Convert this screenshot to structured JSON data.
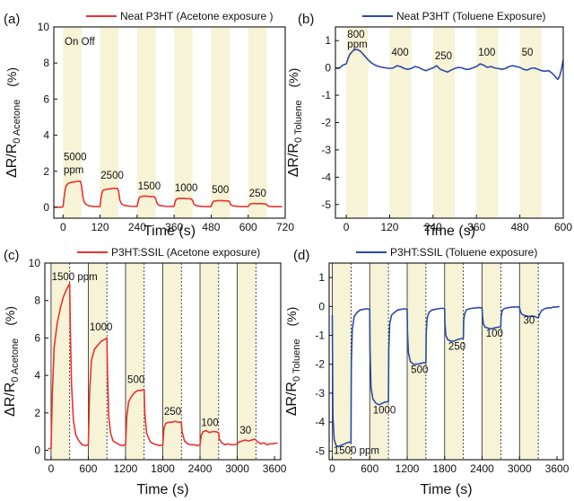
{
  "chart_data": [
    {
      "panel": "(a)",
      "type": "line",
      "legend": "Neat P3HT (Acetone exposure )",
      "color": "#e8332e",
      "xlabel": "Time (s)",
      "ylabel_main": "ΔR/R",
      "ylabel_sub": "0 Acetone",
      "ylabel_unit": "(%)",
      "xlim": [
        -30,
        720
      ],
      "ylim": [
        -0.6,
        10
      ],
      "xticks": [
        0,
        120,
        240,
        360,
        480,
        600,
        720
      ],
      "yticks": [
        0,
        2,
        4,
        6,
        8,
        10
      ],
      "exposure_windows": [
        [
          0,
          60
        ],
        [
          120,
          180
        ],
        [
          240,
          300
        ],
        [
          360,
          420
        ],
        [
          480,
          540
        ],
        [
          600,
          660
        ]
      ],
      "annotations": [
        {
          "text": "On Off",
          "x": 5,
          "y": 9.0
        },
        {
          "text": "5000",
          "x": 2,
          "y": 2.6
        },
        {
          "text": "ppm",
          "x": 2,
          "y": 1.9
        },
        {
          "text": "2500",
          "x": 122,
          "y": 1.6
        },
        {
          "text": "1500",
          "x": 242,
          "y": 1.0
        },
        {
          "text": "1000",
          "x": 362,
          "y": 0.9
        },
        {
          "text": "500",
          "x": 482,
          "y": 0.8
        },
        {
          "text": "250",
          "x": 603,
          "y": 0.6
        }
      ],
      "x": [
        -30,
        -5,
        0,
        3,
        6,
        10,
        15,
        20,
        30,
        40,
        50,
        56,
        60,
        64,
        68,
        75,
        85,
        100,
        118,
        120,
        123,
        126,
        130,
        140,
        150,
        160,
        170,
        176,
        180,
        184,
        190,
        200,
        220,
        238,
        240,
        243,
        246,
        250,
        260,
        270,
        280,
        290,
        296,
        300,
        304,
        310,
        330,
        358,
        360,
        363,
        366,
        370,
        380,
        390,
        400,
        410,
        416,
        420,
        424,
        430,
        450,
        478,
        480,
        483,
        486,
        490,
        500,
        510,
        520,
        530,
        536,
        540,
        544,
        550,
        570,
        598,
        600,
        603,
        606,
        610,
        620,
        630,
        640,
        650,
        656,
        660,
        664,
        670,
        690,
        710
      ],
      "y": [
        0.02,
        0.0,
        0.05,
        0.5,
        0.9,
        1.2,
        1.3,
        1.35,
        1.4,
        1.42,
        1.45,
        1.45,
        1.2,
        0.6,
        0.3,
        0.15,
        0.08,
        0.05,
        0.04,
        0.06,
        0.5,
        0.8,
        0.95,
        1.0,
        1.02,
        1.05,
        1.05,
        1.05,
        0.9,
        0.4,
        0.18,
        0.1,
        0.06,
        0.05,
        0.06,
        0.3,
        0.5,
        0.58,
        0.62,
        0.62,
        0.6,
        0.6,
        0.58,
        0.5,
        0.25,
        0.12,
        0.06,
        0.05,
        0.06,
        0.3,
        0.42,
        0.48,
        0.5,
        0.5,
        0.48,
        0.48,
        0.46,
        0.38,
        0.18,
        0.1,
        0.05,
        0.04,
        0.05,
        0.2,
        0.3,
        0.35,
        0.37,
        0.38,
        0.36,
        0.36,
        0.35,
        0.3,
        0.14,
        0.08,
        0.05,
        0.04,
        0.05,
        0.12,
        0.18,
        0.2,
        0.22,
        0.2,
        0.21,
        0.2,
        0.19,
        0.16,
        0.08,
        0.05,
        0.04,
        0.04
      ]
    },
    {
      "panel": "(b)",
      "type": "line",
      "legend": "Neat P3HT (Toluene Exposure)",
      "color": "#2b4aa6",
      "xlabel": "Time (s)",
      "ylabel_main": "ΔR/R",
      "ylabel_sub": "0 Toluene",
      "ylabel_unit": "(%)",
      "xlim": [
        -30,
        600
      ],
      "ylim": [
        -5.5,
        1.5
      ],
      "xticks": [
        0,
        120,
        240,
        360,
        480,
        600
      ],
      "yticks": [
        1,
        0,
        -1,
        -2,
        -3,
        -4,
        -5
      ],
      "exposure_windows": [
        [
          0,
          60
        ],
        [
          120,
          180
        ],
        [
          240,
          300
        ],
        [
          360,
          420
        ],
        [
          480,
          540
        ]
      ],
      "annotations": [
        {
          "text": "800",
          "x": 3,
          "y": 1.1
        },
        {
          "text": "ppm",
          "x": 3,
          "y": 0.75
        },
        {
          "text": "400",
          "x": 125,
          "y": 0.45
        },
        {
          "text": "250",
          "x": 245,
          "y": 0.32
        },
        {
          "text": "100",
          "x": 365,
          "y": 0.45
        },
        {
          "text": "50",
          "x": 485,
          "y": 0.45
        }
      ],
      "x": [
        -30,
        -20,
        -10,
        0,
        5,
        10,
        20,
        30,
        40,
        50,
        60,
        70,
        80,
        90,
        100,
        110,
        120,
        130,
        140,
        150,
        160,
        170,
        180,
        190,
        200,
        210,
        220,
        230,
        240,
        250,
        260,
        270,
        280,
        290,
        300,
        310,
        320,
        330,
        340,
        350,
        360,
        370,
        380,
        390,
        400,
        410,
        420,
        430,
        440,
        450,
        460,
        470,
        480,
        490,
        500,
        510,
        520,
        530,
        540,
        550,
        560,
        570,
        580,
        585,
        590,
        595,
        600
      ],
      "y": [
        0.0,
        -0.02,
        0.1,
        0.15,
        0.35,
        0.5,
        0.65,
        0.68,
        0.6,
        0.45,
        0.3,
        0.18,
        0.1,
        0.05,
        0.02,
        0.0,
        -0.02,
        0.0,
        0.08,
        0.05,
        -0.02,
        -0.05,
        -0.02,
        0.05,
        0.02,
        -0.05,
        -0.1,
        -0.05,
        0.0,
        0.08,
        -0.05,
        -0.1,
        -0.15,
        -0.08,
        -0.02,
        0.02,
        0.0,
        -0.05,
        -0.05,
        0.0,
        0.05,
        0.15,
        0.1,
        0.02,
        0.05,
        0.0,
        -0.02,
        -0.05,
        -0.02,
        0.05,
        0.08,
        0.05,
        0.02,
        -0.05,
        -0.08,
        -0.02,
        0.0,
        -0.05,
        -0.1,
        -0.12,
        -0.1,
        -0.2,
        -0.35,
        -0.42,
        -0.3,
        -0.05,
        0.3
      ]
    },
    {
      "panel": "(c)",
      "type": "line",
      "legend": "P3HT:SSIL (Acetone exposure)",
      "color": "#e8332e",
      "xlabel": "Time (s)",
      "ylabel_main": "ΔR/R",
      "ylabel_sub": "0 Acetone",
      "ylabel_unit": "(%)",
      "xlim": [
        -100,
        3700
      ],
      "ylim": [
        -0.5,
        10
      ],
      "xticks": [
        0,
        600,
        1200,
        1800,
        2400,
        3000,
        3600
      ],
      "yticks": [
        0,
        2,
        4,
        6,
        8,
        10
      ],
      "exposure_windows": [
        [
          0,
          300
        ],
        [
          600,
          900
        ],
        [
          1200,
          1500
        ],
        [
          1800,
          2100
        ],
        [
          2400,
          2700
        ],
        [
          3000,
          3300
        ]
      ],
      "annotations": [
        {
          "text": "1500 ppm",
          "x": 10,
          "y": 9.1
        },
        {
          "text": "1000",
          "x": 620,
          "y": 6.4
        },
        {
          "text": "500",
          "x": 1230,
          "y": 3.6
        },
        {
          "text": "250",
          "x": 1820,
          "y": 1.9
        },
        {
          "text": "100",
          "x": 2420,
          "y": 1.3
        },
        {
          "text": "30",
          "x": 3040,
          "y": 0.9
        }
      ],
      "x": [
        -50,
        0,
        20,
        50,
        100,
        150,
        200,
        250,
        300,
        310,
        330,
        360,
        400,
        450,
        500,
        560,
        600,
        620,
        650,
        700,
        750,
        800,
        850,
        900,
        910,
        930,
        960,
        1000,
        1050,
        1100,
        1150,
        1200,
        1220,
        1250,
        1300,
        1350,
        1400,
        1450,
        1500,
        1510,
        1540,
        1600,
        1650,
        1700,
        1760,
        1800,
        1820,
        1850,
        1900,
        1950,
        2000,
        2050,
        2100,
        2110,
        2150,
        2200,
        2250,
        2300,
        2360,
        2400,
        2420,
        2450,
        2500,
        2550,
        2600,
        2650,
        2700,
        2710,
        2750,
        2800,
        2850,
        2900,
        2960,
        3000,
        3030,
        3080,
        3130,
        3180,
        3230,
        3280,
        3300,
        3330,
        3380,
        3430,
        3480,
        3530,
        3580,
        3650
      ],
      "y": [
        0.1,
        0.1,
        3.0,
        5.5,
        6.8,
        7.6,
        8.2,
        8.6,
        8.9,
        6.5,
        3.5,
        1.6,
        0.8,
        0.5,
        0.3,
        0.25,
        0.3,
        3.0,
        4.8,
        5.4,
        5.6,
        5.8,
        5.9,
        6.0,
        4.0,
        1.8,
        0.9,
        0.5,
        0.4,
        0.3,
        0.25,
        0.3,
        1.8,
        2.6,
        2.9,
        3.1,
        3.2,
        3.2,
        3.25,
        2.0,
        0.9,
        0.45,
        0.35,
        0.3,
        0.25,
        0.3,
        1.2,
        1.45,
        1.5,
        1.5,
        1.55,
        1.5,
        1.5,
        1.0,
        0.5,
        0.35,
        0.3,
        0.3,
        0.25,
        0.3,
        0.8,
        1.0,
        1.05,
        0.95,
        1.0,
        1.0,
        0.95,
        0.6,
        0.4,
        0.3,
        0.35,
        0.3,
        0.3,
        0.35,
        0.45,
        0.5,
        0.55,
        0.5,
        0.55,
        0.6,
        0.55,
        0.45,
        0.35,
        0.4,
        0.3,
        0.35,
        0.35,
        0.4
      ]
    },
    {
      "panel": "(d)",
      "type": "line",
      "legend": "P3HT:SSIL (Toluene exposure)",
      "color": "#2b4aa6",
      "xlabel": "Time (s)",
      "ylabel_main": "ΔR/R",
      "ylabel_sub": "0 Toluene",
      "ylabel_unit": "(%)",
      "xlim": [
        -50,
        3700
      ],
      "ylim": [
        -5.3,
        1.5
      ],
      "xticks": [
        0,
        600,
        1200,
        1800,
        2400,
        3000,
        3600
      ],
      "yticks": [
        1,
        0,
        -1,
        -2,
        -3,
        -4,
        -5
      ],
      "exposure_windows": [
        [
          0,
          300
        ],
        [
          600,
          900
        ],
        [
          1200,
          1500
        ],
        [
          1800,
          2100
        ],
        [
          2400,
          2700
        ],
        [
          3000,
          3300
        ]
      ],
      "annotations": [
        {
          "text": "1500 ppm",
          "x": 20,
          "y": -5.1
        },
        {
          "text": "1000",
          "x": 650,
          "y": -3.7
        },
        {
          "text": "500",
          "x": 1260,
          "y": -2.3
        },
        {
          "text": "250",
          "x": 1860,
          "y": -1.5
        },
        {
          "text": "100",
          "x": 2460,
          "y": -1.05
        },
        {
          "text": "30",
          "x": 3060,
          "y": -0.6
        }
      ],
      "x": [
        0,
        10,
        30,
        60,
        100,
        150,
        200,
        250,
        300,
        305,
        320,
        350,
        400,
        450,
        500,
        550,
        600,
        605,
        620,
        650,
        700,
        750,
        800,
        850,
        900,
        905,
        920,
        950,
        1000,
        1050,
        1100,
        1150,
        1200,
        1205,
        1220,
        1250,
        1300,
        1350,
        1400,
        1450,
        1500,
        1505,
        1520,
        1550,
        1600,
        1650,
        1700,
        1750,
        1800,
        1805,
        1820,
        1850,
        1900,
        1950,
        2000,
        2050,
        2100,
        2105,
        2120,
        2150,
        2200,
        2250,
        2300,
        2350,
        2400,
        2405,
        2420,
        2450,
        2500,
        2550,
        2600,
        2650,
        2700,
        2705,
        2720,
        2750,
        2800,
        2850,
        2900,
        2950,
        3000,
        3010,
        3030,
        3060,
        3100,
        3150,
        3200,
        3250,
        3300,
        3320,
        3350,
        3400,
        3450,
        3500,
        3550,
        3600,
        3640
      ],
      "y": [
        -0.3,
        -3.8,
        -4.6,
        -4.8,
        -4.85,
        -4.8,
        -4.75,
        -4.7,
        -4.7,
        -2.0,
        -0.8,
        -0.35,
        -0.2,
        -0.12,
        -0.1,
        -0.08,
        -0.1,
        -1.5,
        -2.8,
        -3.2,
        -3.35,
        -3.4,
        -3.35,
        -3.3,
        -3.3,
        -1.5,
        -0.6,
        -0.3,
        -0.2,
        -0.12,
        -0.1,
        -0.08,
        -0.1,
        -0.9,
        -1.6,
        -1.9,
        -2.0,
        -2.0,
        -1.98,
        -1.95,
        -1.95,
        -0.9,
        -0.4,
        -0.2,
        -0.12,
        -0.1,
        -0.08,
        -0.06,
        -0.08,
        -0.6,
        -1.0,
        -1.15,
        -1.2,
        -1.2,
        -1.15,
        -1.12,
        -1.1,
        -0.5,
        -0.25,
        -0.12,
        -0.08,
        -0.06,
        -0.05,
        -0.04,
        -0.05,
        -0.3,
        -0.6,
        -0.72,
        -0.75,
        -0.78,
        -0.74,
        -0.72,
        -0.7,
        -0.35,
        -0.15,
        -0.08,
        -0.05,
        -0.03,
        -0.02,
        -0.02,
        -0.02,
        -0.15,
        -0.25,
        -0.3,
        -0.32,
        -0.35,
        -0.33,
        -0.35,
        -0.4,
        -0.28,
        -0.15,
        -0.08,
        -0.05,
        -0.05,
        -0.02,
        -0.02,
        0.0
      ]
    }
  ]
}
